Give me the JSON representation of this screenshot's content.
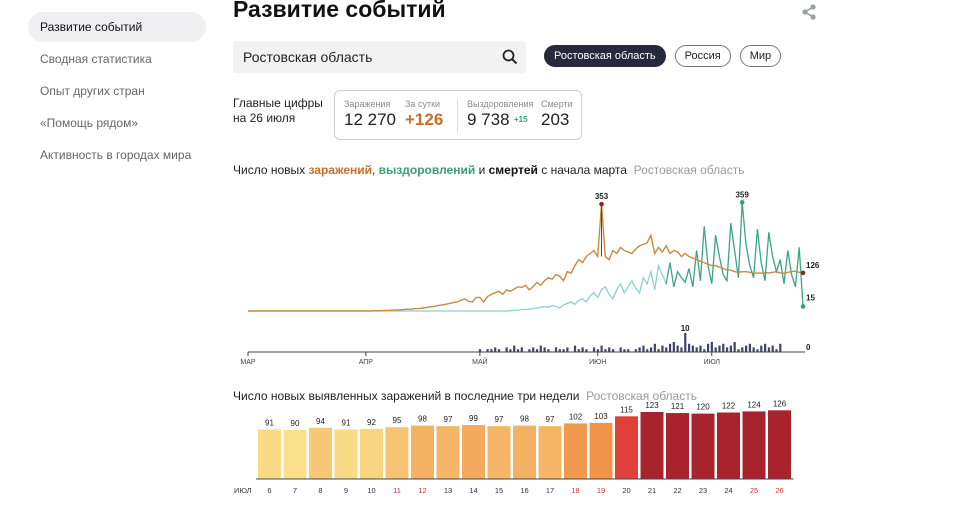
{
  "sidebar": {
    "items": [
      {
        "label": "Развитие событий",
        "active": true
      },
      {
        "label": "Сводная статистика",
        "active": false
      },
      {
        "label": "Опыт других стран",
        "active": false
      },
      {
        "label": "«Помощь рядом»",
        "active": false
      },
      {
        "label": "Активность в городах мира",
        "active": false
      }
    ]
  },
  "page": {
    "title": "Развитие событий"
  },
  "search": {
    "value": "Ростовская область"
  },
  "regions": [
    {
      "label": "Ростовская область",
      "active": true
    },
    {
      "label": "Россия",
      "active": false
    },
    {
      "label": "Мир",
      "active": false
    }
  ],
  "main_figures": {
    "label_line1": "Главные цифры",
    "label_line2": "на 26 июля",
    "infected_label": "Заражения",
    "infected_value": "12 270",
    "daily_label": "За сутки",
    "daily_value": "+126",
    "recovered_label": "Выздоровления",
    "recovered_value": "9 738",
    "recovered_delta": "+15",
    "deaths_label": "Смерти",
    "deaths_value": "203"
  },
  "chart1": {
    "title_prefix": "Число новых ",
    "title_infections": "заражений",
    "title_sep": ", ",
    "title_recoveries": "выздоровлений",
    "title_and": " и ",
    "title_deaths": "смертей",
    "title_suffix": " с начала марта",
    "title_region": "Ростовская область"
  },
  "chart2": {
    "title": "Число новых выявленных заражений в последние три недели",
    "title_region": "Ростовская область"
  },
  "colors": {
    "infections": "#c98a45",
    "recoveries": "#8ecfd2",
    "recoveries_peaks": "#2e9e7c",
    "deaths": "#3f4464",
    "peak_dot": "#7a2e2a",
    "axis": "#444444",
    "weekend": "#c0392b"
  },
  "chart_data": [
    {
      "type": "line",
      "months": [
        "МАР",
        "АПР",
        "МАЙ",
        "ИЮН",
        "ИЮЛ"
      ],
      "annotations": [
        {
          "series": "infections",
          "value": 353,
          "date": "early June"
        },
        {
          "series": "recoveries",
          "value": 359,
          "date": "early July"
        },
        {
          "series": "infections",
          "value": 126,
          "date": "26 July"
        },
        {
          "series": "recoveries",
          "value": 15,
          "date": "26 July"
        },
        {
          "series": "deaths",
          "value": 10,
          "date": "mid June"
        },
        {
          "series": "deaths",
          "value": 0,
          "date": "26 July"
        }
      ],
      "series": [
        {
          "key": "infections",
          "values": [
            0,
            0,
            0,
            0,
            0,
            0,
            0,
            0,
            0,
            0,
            0,
            0,
            0,
            0,
            0,
            0,
            0,
            0,
            0,
            0,
            0,
            0,
            0,
            0,
            0,
            0,
            0,
            0,
            0,
            0,
            0,
            0,
            0,
            1,
            1,
            1,
            2,
            2,
            3,
            3,
            4,
            5,
            6,
            6,
            8,
            8,
            10,
            12,
            14,
            15,
            18,
            20,
            22,
            25,
            28,
            30,
            35,
            40,
            32,
            30,
            45,
            45,
            30,
            48,
            55,
            60,
            65,
            55,
            70,
            65,
            72,
            80,
            78,
            85,
            70,
            80,
            95,
            85,
            100,
            110,
            105,
            120,
            115,
            100,
            130,
            125,
            150,
            170,
            160,
            180,
            190,
            200,
            180,
            353,
            180,
            170,
            200,
            190,
            210,
            200,
            195,
            190,
            205,
            215,
            220,
            225,
            250,
            190,
            210,
            195,
            215,
            190,
            200,
            195,
            180,
            190,
            180,
            175,
            170,
            165,
            160,
            155,
            150,
            150,
            145,
            140,
            135,
            135,
            130,
            128,
            130,
            130,
            128,
            125,
            126,
            125,
            127,
            126,
            128,
            130,
            126,
            125,
            128,
            130,
            132,
            128,
            126
          ]
        },
        {
          "key": "recoveries",
          "values": [
            0,
            0,
            0,
            0,
            0,
            0,
            0,
            0,
            0,
            0,
            0,
            0,
            0,
            0,
            0,
            0,
            0,
            0,
            0,
            0,
            0,
            0,
            0,
            0,
            0,
            0,
            0,
            0,
            0,
            0,
            0,
            0,
            0,
            0,
            0,
            0,
            0,
            0,
            0,
            0,
            0,
            0,
            0,
            0,
            0,
            0,
            0,
            0,
            0,
            0,
            0,
            0,
            0,
            0,
            0,
            0,
            0,
            0,
            0,
            0,
            0,
            0,
            0,
            0,
            0,
            0,
            0,
            0,
            0,
            1,
            2,
            3,
            5,
            5,
            6,
            8,
            10,
            12,
            15,
            12,
            18,
            15,
            10,
            20,
            25,
            30,
            22,
            35,
            40,
            30,
            50,
            60,
            45,
            70,
            80,
            55,
            40,
            70,
            90,
            60,
            80,
            100,
            75,
            60,
            110,
            90,
            130,
            70,
            150,
            120,
            90,
            160,
            80,
            130,
            110,
            95,
            140,
            80,
            200,
            100,
            280,
            150,
            90,
            250,
            180,
            120,
            100,
            290,
            200,
            110,
            359,
            220,
            150,
            110,
            270,
            160,
            100,
            260,
            180,
            130,
            170,
            90,
            200,
            120,
            80,
            210,
            15
          ]
        },
        {
          "key": "deaths",
          "values": [
            0,
            0,
            0,
            0,
            0,
            0,
            0,
            0,
            0,
            0,
            0,
            0,
            0,
            0,
            0,
            0,
            0,
            0,
            0,
            0,
            0,
            0,
            0,
            0,
            0,
            0,
            0,
            0,
            0,
            0,
            0,
            0,
            0,
            0,
            0,
            0,
            0,
            0,
            0,
            0,
            0,
            0,
            0,
            0,
            0,
            0,
            0,
            0,
            0,
            0,
            0,
            0,
            0,
            0,
            0,
            0,
            0,
            0,
            0,
            0,
            0,
            1,
            0,
            1,
            1,
            2,
            1,
            0,
            2,
            1,
            3,
            1,
            2,
            0,
            1,
            2,
            1,
            3,
            2,
            1,
            0,
            2,
            1,
            1,
            2,
            0,
            3,
            1,
            2,
            1,
            0,
            2,
            1,
            3,
            1,
            2,
            1,
            0,
            2,
            1,
            1,
            0,
            1,
            2,
            3,
            1,
            2,
            4,
            1,
            3,
            2,
            4,
            5,
            3,
            2,
            10,
            4,
            3,
            2,
            3,
            1,
            4,
            5,
            2,
            3,
            4,
            2,
            3,
            5,
            1,
            2,
            3,
            4,
            2,
            1,
            3,
            4,
            2,
            3,
            1,
            4,
            0
          ]
        }
      ]
    },
    {
      "type": "bar",
      "categories": [
        "6",
        "7",
        "8",
        "9",
        "10",
        "11",
        "12",
        "13",
        "14",
        "15",
        "16",
        "17",
        "18",
        "19",
        "20",
        "21",
        "22",
        "23",
        "24",
        "25",
        "26"
      ],
      "month_label": "ИЮЛ",
      "weekend_categories": [
        "11",
        "12",
        "18",
        "19",
        "25",
        "26"
      ],
      "values": [
        91,
        90,
        94,
        91,
        92,
        95,
        98,
        97,
        99,
        97,
        98,
        97,
        102,
        103,
        115,
        123,
        121,
        120,
        122,
        124,
        126
      ]
    }
  ]
}
